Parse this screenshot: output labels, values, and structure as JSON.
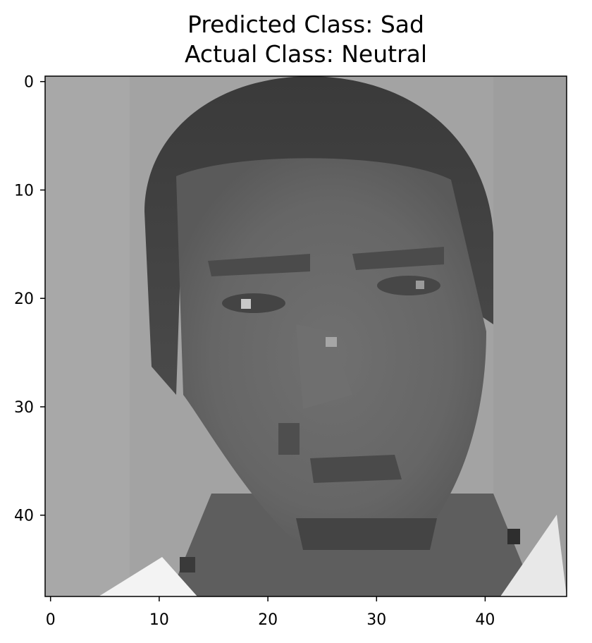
{
  "title": {
    "line1": "Predicted Class: Sad",
    "line2": "Actual Class: Neutral"
  },
  "image": {
    "description_name": "grayscale-face-48x48",
    "pixels_wide": 48,
    "pixels_high": 48
  },
  "axes": {
    "x_ticks": [
      "0",
      "10",
      "20",
      "30",
      "40"
    ],
    "y_ticks": [
      "0",
      "10",
      "20",
      "30",
      "40"
    ],
    "xlim": [
      -0.5,
      47.5
    ],
    "ylim": [
      47.5,
      -0.5
    ]
  },
  "colors": {
    "frame": "#000000",
    "background_gray": "#9a9a9a"
  }
}
